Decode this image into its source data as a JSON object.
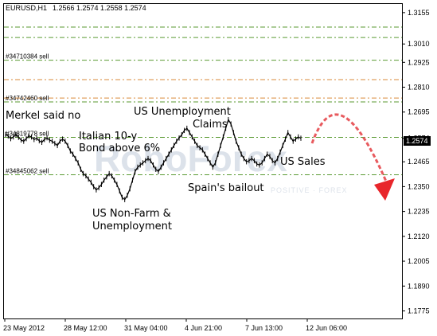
{
  "header": {
    "symbol": "EURUSD,H1",
    "ohlc": "1.2566 1.2574 1.2558 1.2574"
  },
  "chart_data": {
    "type": "line",
    "title": "",
    "ylim": [
      1.174,
      1.3195
    ],
    "y_ticks": [
      "1.3155",
      "1.3010",
      "1.2925",
      "1.2810",
      "1.2695",
      "1.2574",
      "1.2465",
      "1.2350",
      "1.2235",
      "1.2120",
      "1.2005",
      "1.1890",
      "1.1775"
    ],
    "x_ticks": [
      "23 May 2012",
      "28 May 12:00",
      "31 May 04:00",
      "4 Jun 21:00",
      "7 Jun 13:00",
      "12 Jun 06:00"
    ],
    "current_price": "1.2574",
    "series": [
      {
        "values": [
          1.2592,
          1.2584,
          1.2572,
          1.258,
          1.259,
          1.2578,
          1.2566,
          1.256,
          1.2572,
          1.2585,
          1.258,
          1.2568,
          1.2574,
          1.2562,
          1.2555,
          1.2568,
          1.2576,
          1.2565,
          1.256,
          1.255,
          1.254,
          1.256,
          1.257,
          1.256,
          1.254,
          1.2515,
          1.25,
          1.248,
          1.246,
          1.243,
          1.241,
          1.24,
          1.2385,
          1.237,
          1.235,
          1.2335,
          1.2345,
          1.236,
          1.238,
          1.2395,
          1.241,
          1.24,
          1.238,
          1.236,
          1.233,
          1.23,
          1.229,
          1.231,
          1.234,
          1.238,
          1.242,
          1.244,
          1.245,
          1.246,
          1.247,
          1.248,
          1.247,
          1.245,
          1.243,
          1.242,
          1.244,
          1.246,
          1.248,
          1.25,
          1.252,
          1.254,
          1.256,
          1.2575,
          1.259,
          1.261,
          1.262,
          1.26,
          1.258,
          1.256,
          1.254,
          1.253,
          1.252,
          1.25,
          1.248,
          1.246,
          1.244,
          1.246,
          1.25,
          1.254,
          1.258,
          1.262,
          1.266,
          1.264,
          1.26,
          1.256,
          1.253,
          1.25,
          1.248,
          1.2465,
          1.247,
          1.248,
          1.247,
          1.2455,
          1.245,
          1.246,
          1.248,
          1.25,
          1.249,
          1.247,
          1.246,
          1.248,
          1.251,
          1.254,
          1.257,
          1.26,
          1.258,
          1.256,
          1.257,
          1.258,
          1.2574
        ]
      }
    ],
    "order_lines": [
      {
        "value": 1.3088,
        "color": "#5a9a32",
        "label": ""
      },
      {
        "value": 1.304,
        "color": "#5a9a32",
        "label": ""
      },
      {
        "value": 1.2935,
        "color": "#5a9a32",
        "label": "#34710384 sell"
      },
      {
        "value": 1.2845,
        "color": "#d98a3a",
        "label": ""
      },
      {
        "value": 1.276,
        "color": "#d98a3a",
        "label": ""
      },
      {
        "value": 1.2742,
        "color": "#5a9a32",
        "label": "#34742460 sell"
      },
      {
        "value": 1.2578,
        "color": "#5a9a32",
        "label": "#34819778 sell"
      },
      {
        "value": 1.2405,
        "color": "#5a9a32",
        "label": "#34845062 sell"
      }
    ],
    "annotations": [
      {
        "text": "Merkel said no"
      },
      {
        "text": "Italian 10-y"
      },
      {
        "text": "Bond above 6%"
      },
      {
        "text": "US Unemployment"
      },
      {
        "text": "Claims"
      },
      {
        "text": "US Non-Farm &"
      },
      {
        "text": "Unemployment"
      },
      {
        "text": "Spain's bailout"
      },
      {
        "text": "US Sales"
      }
    ]
  },
  "watermark": {
    "brand": "RoboForex",
    "tagline": "POSITIVE · FOREX"
  },
  "colors": {
    "price_box": "#000000",
    "arrow": "#e8262b",
    "arc": "#e85a5e",
    "grid": "#000000"
  }
}
